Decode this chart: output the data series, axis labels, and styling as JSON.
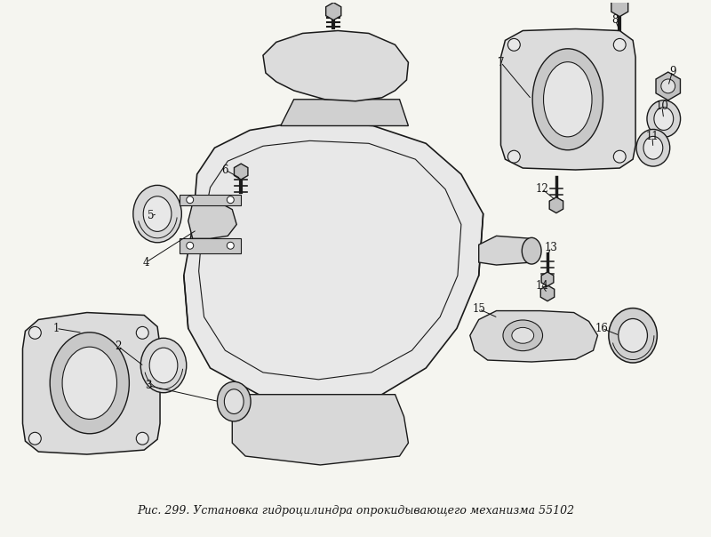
{
  "title": "Рис. 299. Установка гидроцилиндра опрокидывающего механизма 55102",
  "title_fontsize": 9,
  "background_color": "#f5f5f0",
  "fig_width": 8.0,
  "fig_height": 6.04,
  "dpi": 100,
  "lc": "#1a1a1a",
  "wc": "#cccccc",
  "border_color": "#555555"
}
